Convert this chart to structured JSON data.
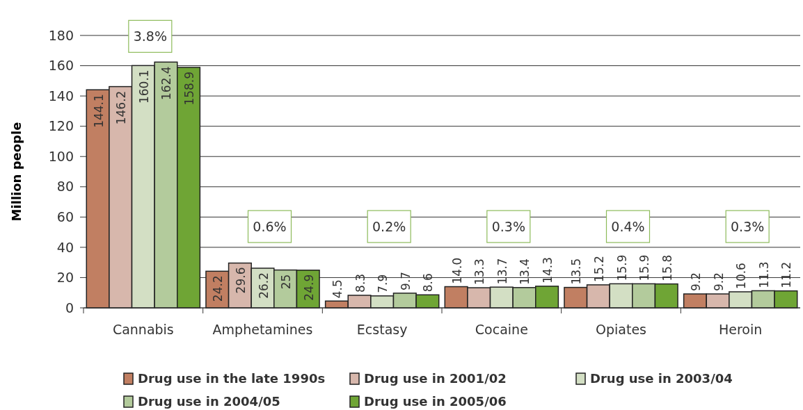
{
  "chart_data": {
    "type": "bar",
    "ylabel": "Million people",
    "categories": [
      "Cannabis",
      "Amphetamines",
      "Ecstasy",
      "Cocaine",
      "Opiates",
      "Heroin"
    ],
    "series": [
      {
        "name": "Drug use in the late 1990s",
        "color": "#c17f62",
        "values": [
          144.1,
          24.2,
          4.5,
          14.0,
          13.5,
          9.2
        ],
        "value_labels": [
          "144.1",
          "24.2",
          "4.5",
          "14.0",
          "13.5",
          "9.2"
        ]
      },
      {
        "name": "Drug use in 2001/02",
        "color": "#d7b7ac",
        "values": [
          146.2,
          29.6,
          8.3,
          13.3,
          15.2,
          9.2
        ],
        "value_labels": [
          "146.2",
          "29.6",
          "8.3",
          "13.3",
          "15.2",
          "9.2"
        ]
      },
      {
        "name": "Drug use in 2003/04",
        "color": "#d3dfc4",
        "values": [
          160.1,
          26.2,
          7.9,
          13.7,
          15.9,
          10.6
        ],
        "value_labels": [
          "160.1",
          "26.2",
          "7.9",
          "13.7",
          "15.9",
          "10.6"
        ]
      },
      {
        "name": "Drug use in 2004/05",
        "color": "#b3cb9c",
        "values": [
          162.4,
          25,
          9.7,
          13.4,
          15.9,
          11.3
        ],
        "value_labels": [
          "162.4",
          "25",
          "9.7",
          "13.4",
          "15.9",
          "11.3"
        ]
      },
      {
        "name": "Drug use in 2005/06",
        "color": "#6fa535",
        "values": [
          158.9,
          24.9,
          8.6,
          14.3,
          15.8,
          11.2
        ],
        "value_labels": [
          "158.9",
          "24.9",
          "8.6",
          "14.3",
          "15.8",
          "11.2"
        ]
      }
    ],
    "ylim": [
      0,
      180
    ],
    "yticks": [
      0,
      20,
      40,
      60,
      80,
      100,
      120,
      140,
      160,
      180
    ],
    "grid": "y",
    "legend": "bottom",
    "annotations": [
      "3.8%",
      "0.6%",
      "0.2%",
      "0.3%",
      "0.4%",
      "0.3%"
    ]
  }
}
